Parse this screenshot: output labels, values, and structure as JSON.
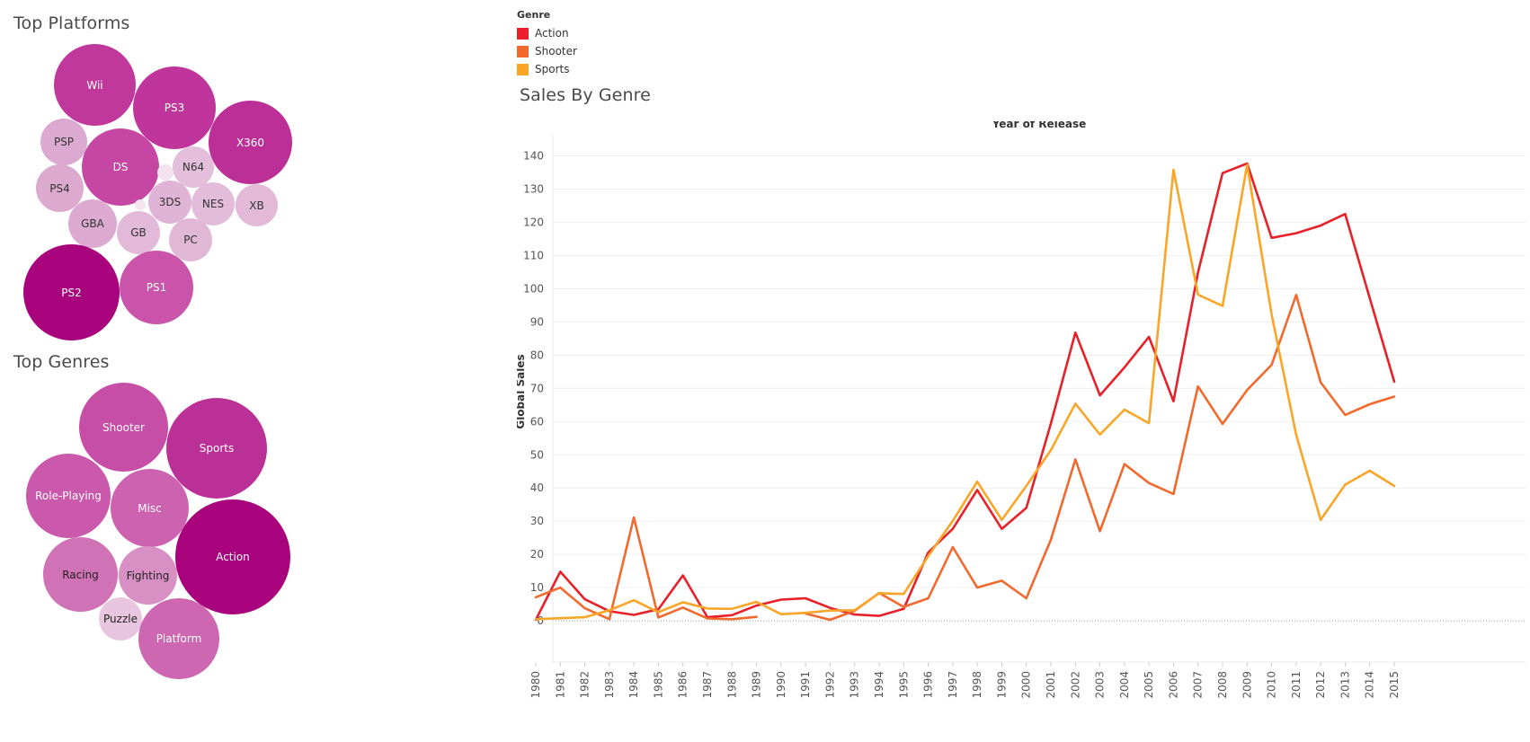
{
  "platforms_title": "Top Platforms",
  "genres_title": "Top Genres",
  "chart_title": "Sales By Genre",
  "platform_bubbles": [
    {
      "label": "Wii",
      "color": "#c0389c",
      "text": "#ffffff"
    },
    {
      "label": "PS3",
      "color": "#bf359b",
      "text": "#ffffff"
    },
    {
      "label": "X360",
      "color": "#bb2f97",
      "text": "#ffffff"
    },
    {
      "label": "PSP",
      "color": "#dcaad0",
      "text": "#333333"
    },
    {
      "label": "DS",
      "color": "#c547a3",
      "text": "#ffffff"
    },
    {
      "label": "N64",
      "color": "#e4bfdb",
      "text": "#333333"
    },
    {
      "label": "PS4",
      "color": "#dca9cf",
      "text": "#333333"
    },
    {
      "label": "3DS",
      "color": "#e0b4d6",
      "text": "#333333"
    },
    {
      "label": "NES",
      "color": "#e3bcd9",
      "text": "#333333"
    },
    {
      "label": "XB",
      "color": "#e2bad8",
      "text": "#333333"
    },
    {
      "label": "GBA",
      "color": "#dcaad0",
      "text": "#333333"
    },
    {
      "label": "GB",
      "color": "#e2b9d8",
      "text": "#333333"
    },
    {
      "label": "PC",
      "color": "#e1b7d6",
      "text": "#333333"
    },
    {
      "label": "PS2",
      "color": "#a8037c",
      "text": "#ffffff"
    },
    {
      "label": "PS1",
      "color": "#c954a9",
      "text": "#ffffff"
    }
  ],
  "genre_bubbles": [
    {
      "label": "Shooter",
      "color": "#c74ea6",
      "text": "#ffffff"
    },
    {
      "label": "Sports",
      "color": "#bb3097",
      "text": "#ffffff"
    },
    {
      "label": "Role-Playing",
      "color": "#ca58ab",
      "text": "#ffffff"
    },
    {
      "label": "Misc",
      "color": "#cd62b0",
      "text": "#ffffff"
    },
    {
      "label": "Action",
      "color": "#a8037c",
      "text": "#ffffff"
    },
    {
      "label": "Racing",
      "color": "#d072b5",
      "text": "#222222"
    },
    {
      "label": "Fighting",
      "color": "#d88fc4",
      "text": "#222222"
    },
    {
      "label": "Puzzle",
      "color": "#e8c6df",
      "text": "#222222"
    },
    {
      "label": "Platform",
      "color": "#cd67b1",
      "text": "#ffffff"
    }
  ],
  "chart_data": {
    "type": "line",
    "title": "Sales By Genre",
    "xlabel": "Year of Release",
    "ylabel": "Global Sales",
    "ylim": [
      -7,
      145
    ],
    "yticks": [
      0,
      10,
      20,
      30,
      40,
      50,
      60,
      70,
      80,
      90,
      100,
      110,
      120,
      130,
      140
    ],
    "legend_title": "Genre",
    "legend_position": "top-left",
    "grid": true,
    "x": [
      "1980",
      "1981",
      "1982",
      "1983",
      "1984",
      "1985",
      "1986",
      "1987",
      "1988",
      "1989",
      "1990",
      "1991",
      "1992",
      "1993",
      "1994",
      "1995",
      "1996",
      "1997",
      "1998",
      "1999",
      "2000",
      "2001",
      "2002",
      "2003",
      "2004",
      "2005",
      "2006",
      "2007",
      "2008",
      "2009",
      "2010",
      "2011",
      "2012",
      "2013",
      "2014",
      "2015"
    ],
    "series": [
      {
        "name": "Action",
        "color": "#e8202a",
        "values": [
          0.3,
          14.8,
          6.5,
          2.9,
          1.8,
          3.5,
          13.7,
          1.1,
          1.7,
          4.6,
          6.4,
          6.8,
          3.9,
          1.9,
          1.5,
          3.6,
          20.6,
          27.7,
          39.4,
          27.7,
          34.0,
          59.4,
          86.8,
          67.9,
          76.3,
          85.5,
          66.1,
          104.9,
          134.8,
          137.7,
          115.3,
          116.7,
          119.0,
          122.5,
          97.2,
          72.0
        ]
      },
      {
        "name": "Shooter",
        "color": "#f2692d",
        "values": [
          7.1,
          10.0,
          3.8,
          0.5,
          31.1,
          1.0,
          4.0,
          0.7,
          0.5,
          1.2,
          null,
          2.2,
          0.3,
          3.0,
          8.4,
          4.2,
          6.8,
          22.2,
          10.0,
          12.1,
          6.8,
          24.4,
          48.6,
          27.0,
          47.2,
          41.5,
          38.2,
          70.6,
          59.3,
          69.5,
          77.1,
          98.1,
          71.8,
          62.0,
          65.2,
          67.5
        ]
      },
      {
        "name": "Sports",
        "color": "#f9a628",
        "values": [
          0.5,
          0.8,
          1.1,
          3.2,
          6.2,
          2.6,
          5.6,
          3.7,
          3.6,
          5.7,
          2.0,
          2.4,
          3.1,
          3.2,
          8.3,
          8.1,
          19.5,
          30.1,
          41.9,
          30.4,
          40.6,
          51.4,
          65.4,
          56.1,
          63.6,
          59.5,
          135.8,
          98.2,
          94.8,
          137.3,
          92.2,
          56.0,
          30.4,
          41.0,
          45.2,
          40.6
        ]
      }
    ]
  }
}
